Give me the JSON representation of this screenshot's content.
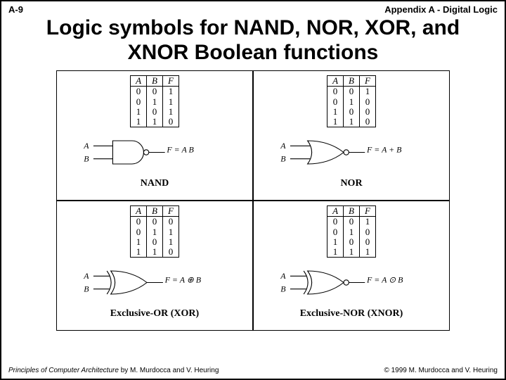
{
  "header": {
    "left": "A-9",
    "right": "Appendix A - Digital Logic"
  },
  "title": "Logic symbols for NAND, NOR, XOR, and XNOR Boolean functions",
  "footer": {
    "book_title": "Principles of Computer Architecture",
    "authors": " by M. Murdocca and V. Heuring",
    "copyright": "© 1999 M. Murdocca and V. Heuring"
  },
  "colors": {
    "bg": "#ffffff",
    "fg": "#000000",
    "stroke": "#000000"
  },
  "gates": [
    {
      "name": "NAND",
      "type": "nand",
      "columns": [
        "A",
        "B",
        "F"
      ],
      "rows": [
        [
          "0",
          "0",
          "1"
        ],
        [
          "0",
          "1",
          "1"
        ],
        [
          "1",
          "0",
          "1"
        ],
        [
          "1",
          "1",
          "0"
        ]
      ],
      "output_expr_html": "F = <span class='overbar'>A B</span>",
      "inputs": [
        "A",
        "B"
      ],
      "has_bubble": true,
      "curved_back": false
    },
    {
      "name": "NOR",
      "type": "nor",
      "columns": [
        "A",
        "B",
        "F"
      ],
      "rows": [
        [
          "0",
          "0",
          "1"
        ],
        [
          "0",
          "1",
          "0"
        ],
        [
          "1",
          "0",
          "0"
        ],
        [
          "1",
          "1",
          "0"
        ]
      ],
      "output_expr_html": "F = <span class='overbar'>A + B</span>",
      "inputs": [
        "A",
        "B"
      ],
      "has_bubble": true,
      "curved_back": true
    },
    {
      "name": "Exclusive-OR (XOR)",
      "type": "xor",
      "columns": [
        "A",
        "B",
        "F"
      ],
      "rows": [
        [
          "0",
          "0",
          "0"
        ],
        [
          "0",
          "1",
          "1"
        ],
        [
          "1",
          "0",
          "1"
        ],
        [
          "1",
          "1",
          "0"
        ]
      ],
      "output_expr_html": "F = A ⊕ B",
      "inputs": [
        "A",
        "B"
      ],
      "has_bubble": false,
      "curved_back": true,
      "double_back": true
    },
    {
      "name": "Exclusive-NOR (XNOR)",
      "type": "xnor",
      "columns": [
        "A",
        "B",
        "F"
      ],
      "rows": [
        [
          "0",
          "0",
          "1"
        ],
        [
          "0",
          "1",
          "0"
        ],
        [
          "1",
          "0",
          "0"
        ],
        [
          "1",
          "1",
          "1"
        ]
      ],
      "output_expr_html": "F = A ⊙ B",
      "inputs": [
        "A",
        "B"
      ],
      "has_bubble": true,
      "curved_back": true,
      "double_back": true
    }
  ],
  "style": {
    "title_fontsize": 30,
    "header_fontsize": 13,
    "footer_fontsize": 10,
    "gate_name_fontsize": 14,
    "table_fontsize": 13,
    "svg_label_fontsize": 13,
    "stroke_width": 1.2
  }
}
